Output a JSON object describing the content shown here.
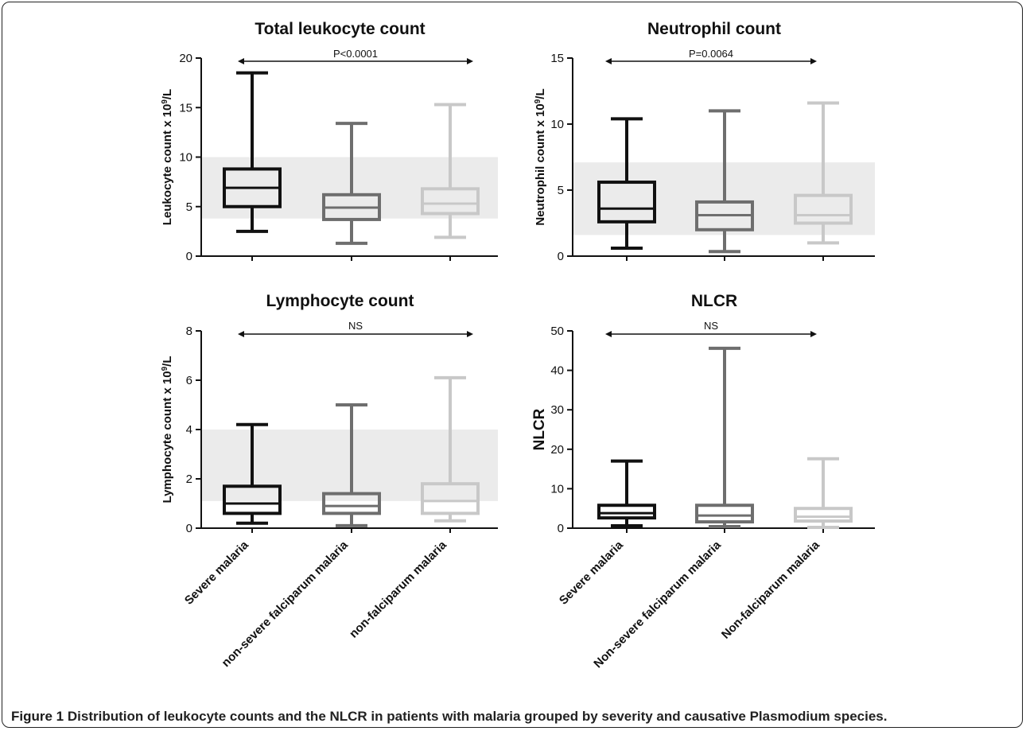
{
  "caption": {
    "label": "Figure 1",
    "text": "Distribution of leukocyte counts and the NLCR in patients with malaria grouped by severity and causative Plasmodium species."
  },
  "colors": {
    "severe": "#111111",
    "nonsevere": "#6e6e6e",
    "nonfalciparum": "#c8c8c8",
    "reference_band": "#ebebeb",
    "axis": "#111111"
  },
  "chart_data": [
    {
      "type": "box",
      "title": "Total leukocyte count",
      "ylabel": "Leukocyte count x 10",
      "ylabel_sup": "9",
      "ylabel_tail": "/L",
      "ylim": [
        0,
        20
      ],
      "yticks": [
        "0",
        "5",
        "10",
        "15",
        "20"
      ],
      "reference_range": [
        3.8,
        10.0
      ],
      "significance": "P<0.0001",
      "categories": [],
      "series": [
        {
          "min": 2.5,
          "q1": 5.0,
          "median": 6.9,
          "q3": 8.8,
          "max": 18.5
        },
        {
          "min": 1.3,
          "q1": 3.7,
          "median": 4.9,
          "q3": 6.2,
          "max": 13.4
        },
        {
          "min": 1.9,
          "q1": 4.3,
          "median": 5.3,
          "q3": 6.8,
          "max": 15.3
        }
      ]
    },
    {
      "type": "box",
      "title": "Neutrophil count",
      "ylabel": "Neutrophil count x 10",
      "ylabel_sup": "9",
      "ylabel_tail": "/L",
      "ylim": [
        0,
        15
      ],
      "yticks": [
        "0",
        "5",
        "10",
        "15"
      ],
      "reference_range": [
        1.6,
        7.1
      ],
      "significance": "P=0.0064",
      "categories": [],
      "series": [
        {
          "min": 0.6,
          "q1": 2.6,
          "median": 3.6,
          "q3": 5.6,
          "max": 10.4
        },
        {
          "min": 0.35,
          "q1": 2.0,
          "median": 3.1,
          "q3": 4.1,
          "max": 11.0
        },
        {
          "min": 1.0,
          "q1": 2.5,
          "median": 3.1,
          "q3": 4.6,
          "max": 11.6
        }
      ]
    },
    {
      "type": "box",
      "title": "Lymphocyte count",
      "ylabel": "Lymphocyte count x 10",
      "ylabel_sup": "9",
      "ylabel_tail": "/L",
      "ylim": [
        0,
        8
      ],
      "yticks": [
        "0",
        "2",
        "4",
        "6",
        "8"
      ],
      "reference_range": [
        1.1,
        4.0
      ],
      "significance": "NS",
      "categories": [
        "Severe malaria",
        "non-severe falciparum malaria",
        "non-falciparum malaria"
      ],
      "series": [
        {
          "min": 0.2,
          "q1": 0.6,
          "median": 1.0,
          "q3": 1.7,
          "max": 4.2
        },
        {
          "min": 0.1,
          "q1": 0.6,
          "median": 0.9,
          "q3": 1.4,
          "max": 5.0
        },
        {
          "min": 0.3,
          "q1": 0.6,
          "median": 1.1,
          "q3": 1.8,
          "max": 6.1
        }
      ]
    },
    {
      "type": "box",
      "title": "NLCR",
      "ylabel": "NLCR",
      "ylabel_sup": "",
      "ylabel_tail": "",
      "ylim": [
        0,
        50
      ],
      "yticks": [
        "0",
        "10",
        "20",
        "30",
        "40",
        "50"
      ],
      "reference_range": null,
      "significance": "NS",
      "categories": [
        "Severe malaria",
        "Non-severe falciparum malaria",
        "Non-falciparum malaria"
      ],
      "series": [
        {
          "min": 0.6,
          "q1": 2.6,
          "median": 3.8,
          "q3": 5.8,
          "max": 17.0
        },
        {
          "min": 0.4,
          "q1": 1.6,
          "median": 3.2,
          "q3": 5.8,
          "max": 45.6
        },
        {
          "min": 0.2,
          "q1": 1.8,
          "median": 2.9,
          "q3": 5.0,
          "max": 17.6
        }
      ]
    }
  ]
}
